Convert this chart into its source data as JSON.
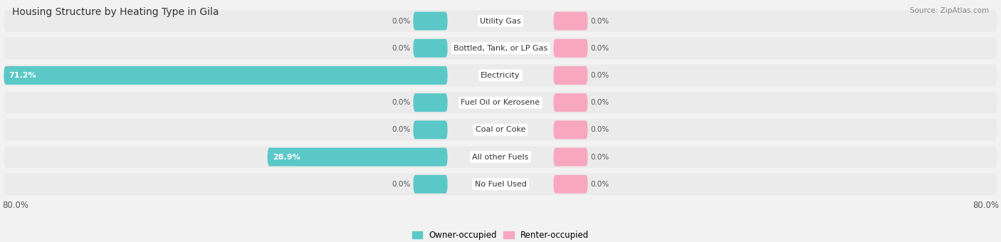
{
  "title": "Housing Structure by Heating Type in Gila",
  "source": "Source: ZipAtlas.com",
  "categories": [
    "Utility Gas",
    "Bottled, Tank, or LP Gas",
    "Electricity",
    "Fuel Oil or Kerosene",
    "Coal or Coke",
    "All other Fuels",
    "No Fuel Used"
  ],
  "owner_values": [
    0.0,
    0.0,
    71.2,
    0.0,
    0.0,
    28.9,
    0.0
  ],
  "renter_values": [
    0.0,
    0.0,
    0.0,
    0.0,
    0.0,
    0.0,
    0.0
  ],
  "owner_color": "#5BC8C8",
  "renter_color": "#F7A8C0",
  "background_color": "#f2f2f2",
  "bar_bg_color": "#e2e2e2",
  "row_bg_color": "#ebebeb",
  "xlim": 80.0,
  "min_stub": 5.0,
  "legend_owner": "Owner-occupied",
  "legend_renter": "Renter-occupied"
}
